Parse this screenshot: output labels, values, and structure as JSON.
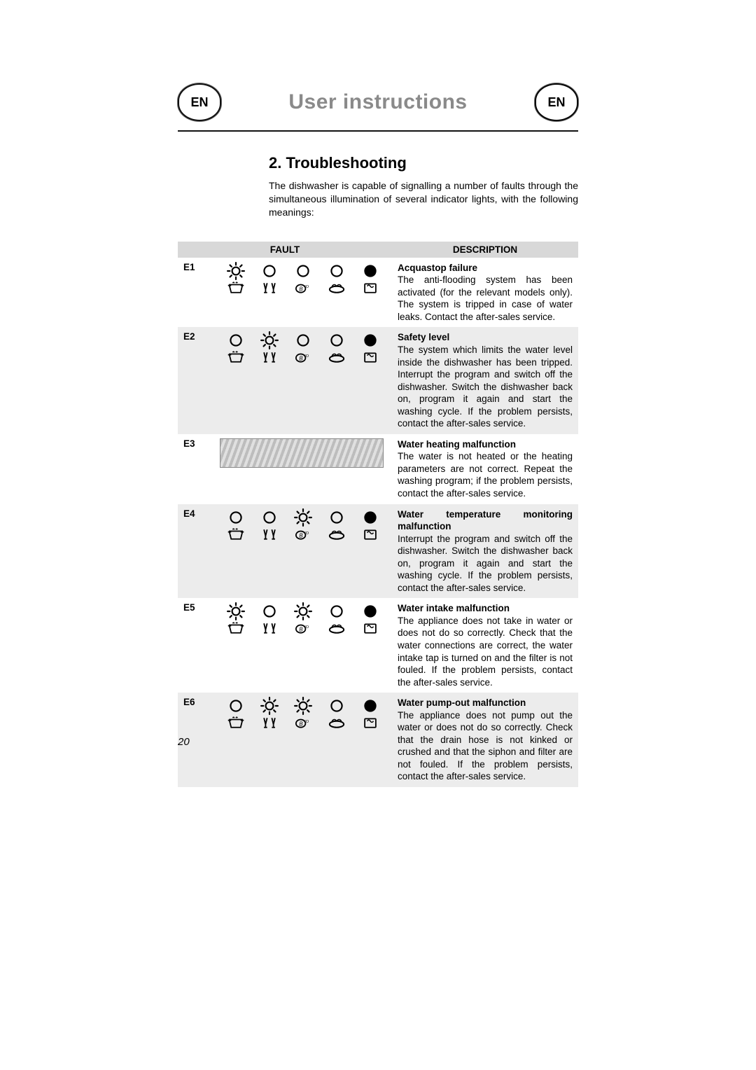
{
  "header": {
    "lang_badge": "EN",
    "title": "User instructions"
  },
  "section": {
    "heading": "2.  Troubleshooting",
    "intro": "The dishwasher is capable of signalling a number of faults through the simultaneous illumination of several indicator lights, with the following meanings:"
  },
  "table": {
    "col_fault": "FAULT",
    "col_desc": "DESCRIPTION",
    "rows": [
      {
        "code": "E1",
        "row_parity": "odd",
        "leds": [
          "sun",
          "off",
          "off",
          "off",
          "on"
        ],
        "title": "Acquastop failure",
        "body": "The anti-flooding system has been activated (for the relevant models only). The system is tripped in case of water leaks. Contact the after-sales service."
      },
      {
        "code": "E2",
        "row_parity": "even",
        "leds": [
          "off",
          "sun",
          "off",
          "off",
          "on"
        ],
        "title": "Safety level",
        "body": "The system which limits the water level inside the dishwasher has been tripped. Interrupt the program and switch off the dishwasher. Switch the dishwasher back on, program it again and start the washing cycle. If the problem persists, contact the after-sales service."
      },
      {
        "code": "E3",
        "row_parity": "odd",
        "leds": null,
        "title": "Water heating malfunction",
        "body": "The water is not heated or the heating parameters are not correct. Repeat the washing program; if the problem persists, contact the after-sales service."
      },
      {
        "code": "E4",
        "row_parity": "even",
        "leds": [
          "off",
          "off",
          "sun",
          "off",
          "on"
        ],
        "title": "Water temperature monitoring malfunction",
        "body": "Interrupt the program and switch off the dishwasher. Switch the dishwasher back on, program it again and start the washing cycle. If the problem persists, contact the after-sales service."
      },
      {
        "code": "E5",
        "row_parity": "odd",
        "leds": [
          "sun",
          "off",
          "sun",
          "off",
          "on"
        ],
        "title": "Water intake malfunction",
        "body": "The appliance does not take in water or does not do so correctly. Check that the water connections are correct, the water intake tap is turned on and the filter is not fouled. If the problem persists, contact the after-sales service."
      },
      {
        "code": "E6",
        "row_parity": "even",
        "leds": [
          "off",
          "sun",
          "sun",
          "off",
          "on"
        ],
        "title": "Water pump-out malfunction",
        "body": "The appliance does not pump out the water or does not do so correctly. Check that the drain hose is not kinked or crushed and that the siphon and filter are not fouled. If the problem persists, contact the after-sales service."
      }
    ],
    "mini_icons": [
      "pot",
      "glasses",
      "eco",
      "strong",
      "soak"
    ]
  },
  "page_number": "20",
  "styling": {
    "title_color": "#8a8a8a",
    "header_even_bg": "#ececec",
    "header_odd_bg": "#ffffff",
    "thead_bg": "#d8d8d8",
    "led_off_stroke": "#000000",
    "led_on_fill": "#000000",
    "font_sizes": {
      "title": 30,
      "heading": 22,
      "body": 14,
      "table": 13.5,
      "page_num": 15
    }
  }
}
